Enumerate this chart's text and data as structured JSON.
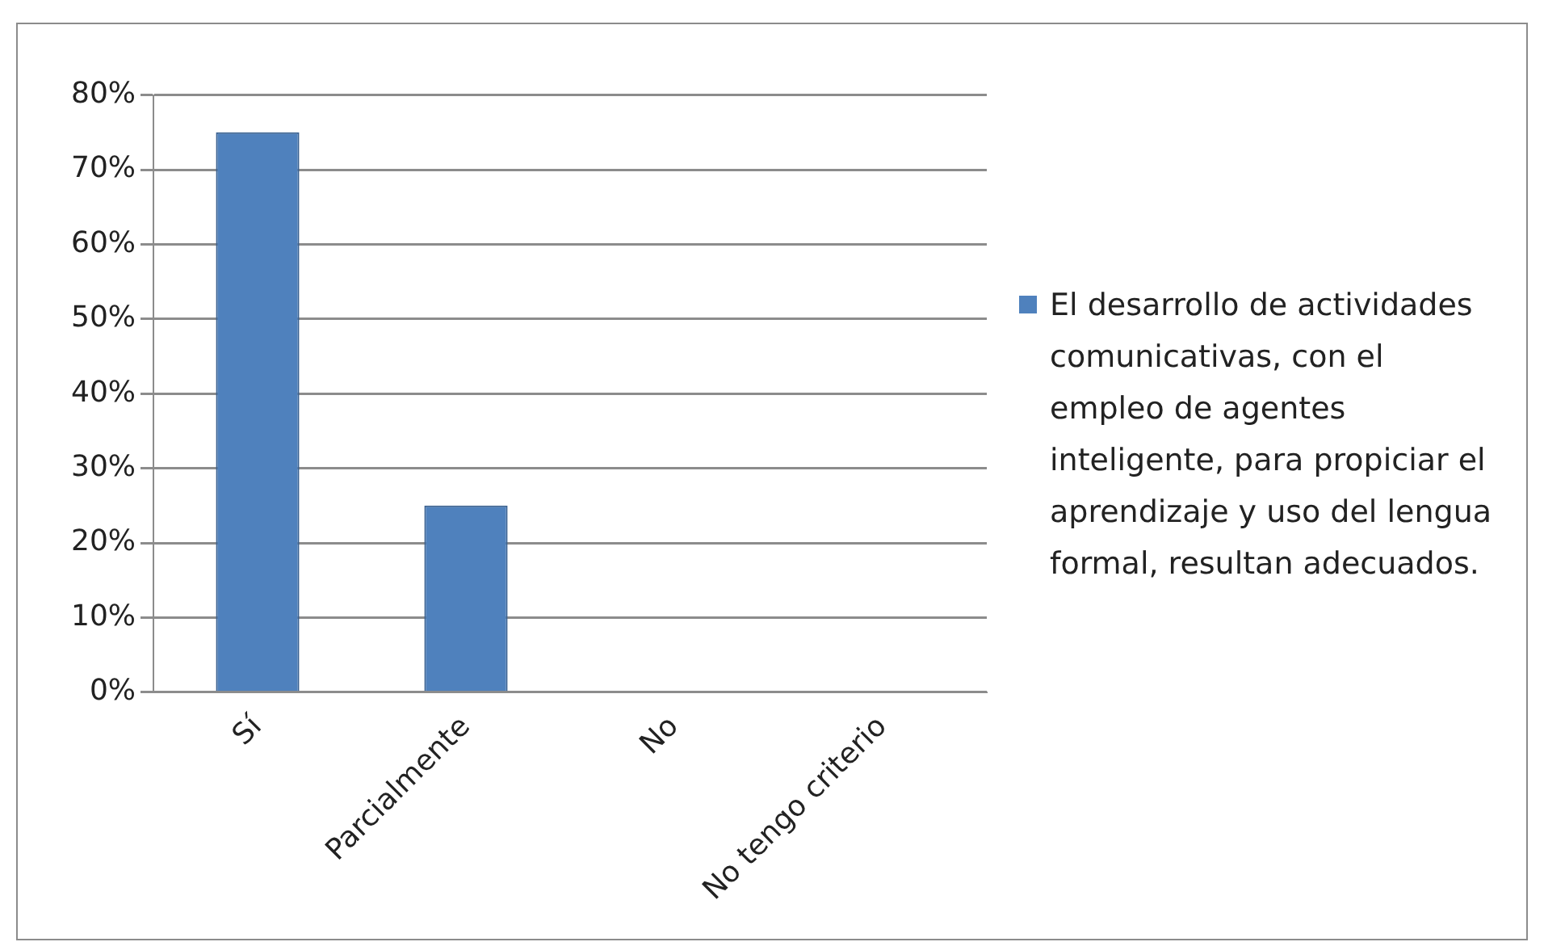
{
  "chart_data": {
    "type": "bar",
    "categories": [
      "Sí",
      "Parcialmente",
      "No",
      "No tengo criterio"
    ],
    "series": [
      {
        "name": "El desarrollo de actividades comunicativas, con el empleo de agentes inteligente, para propiciar el aprendizaje y uso del lengua formal, resultan adecuados.",
        "color": "#4f81bd",
        "values": [
          75,
          25,
          0,
          0
        ]
      }
    ],
    "ylim": [
      0,
      80
    ],
    "yticks": [
      {
        "value": 0,
        "label": "0%"
      },
      {
        "value": 10,
        "label": "10%"
      },
      {
        "value": 20,
        "label": "20%"
      },
      {
        "value": 30,
        "label": "30%"
      },
      {
        "value": 40,
        "label": "40%"
      },
      {
        "value": 50,
        "label": "50%"
      },
      {
        "value": 60,
        "label": "60%"
      },
      {
        "value": 70,
        "label": "70%"
      },
      {
        "value": 80,
        "label": "80%"
      }
    ],
    "grid": "y",
    "legend": "right"
  }
}
